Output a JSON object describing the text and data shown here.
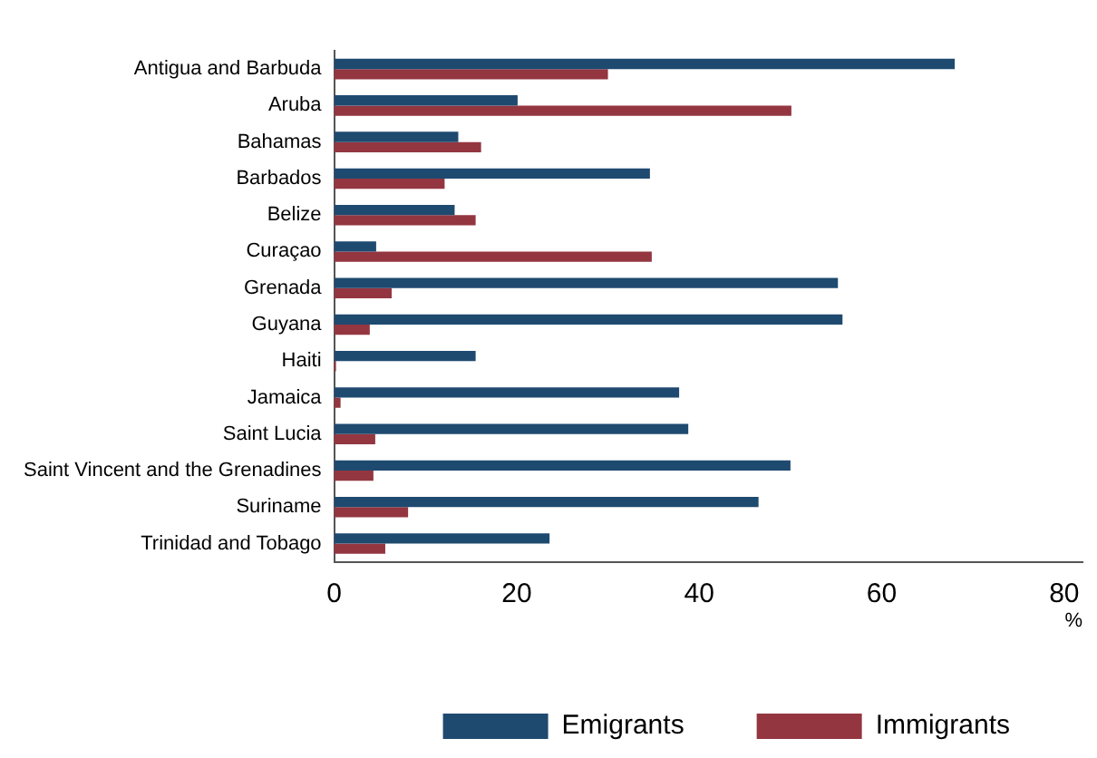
{
  "chart_data": {
    "type": "bar",
    "orientation": "horizontal",
    "xlabel": "%",
    "categories": [
      "Antigua and Barbuda",
      "Aruba",
      "Bahamas",
      "Barbados",
      "Belize",
      "Curaçao",
      "Grenada",
      "Guyana",
      "Haiti",
      "Jamaica",
      "Saint Lucia",
      "Saint Vincent and the Grenadines",
      "Suriname",
      "Trinidad and Tobago"
    ],
    "series": [
      {
        "name": "Emigrants",
        "color": "#1f4a70",
        "values": [
          68.0,
          20.1,
          13.6,
          34.6,
          13.2,
          4.6,
          55.2,
          55.7,
          15.5,
          37.8,
          38.8,
          50.0,
          46.5,
          23.6
        ]
      },
      {
        "name": "Immigrants",
        "color": "#943640",
        "values": [
          30.0,
          50.1,
          16.1,
          12.1,
          15.5,
          34.8,
          6.3,
          3.9,
          0.2,
          0.7,
          4.5,
          4.3,
          8.1,
          5.6
        ]
      }
    ],
    "xlim": [
      0,
      82
    ],
    "xticks": [
      0,
      20,
      40,
      60,
      80
    ],
    "grid": false,
    "legend": "bottom"
  }
}
